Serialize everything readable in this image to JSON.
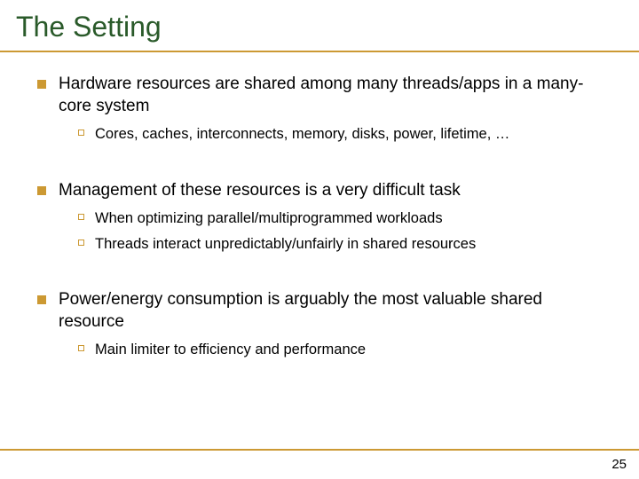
{
  "title": "The Setting",
  "colors": {
    "title_text": "#2a5a2a",
    "accent": "#cc9933",
    "body_text": "#000000",
    "background": "#ffffff"
  },
  "typography": {
    "title_fontsize": 32,
    "level1_fontsize": 19,
    "level2_fontsize": 16.5,
    "title_font": "Arial",
    "body_font": "Verdana"
  },
  "bullets": [
    {
      "text": "Hardware resources are shared among many threads/apps in a many-core system",
      "children": [
        {
          "text": "Cores, caches, interconnects, memory, disks, power, lifetime, …"
        }
      ]
    },
    {
      "text": "Management of these resources is a very difficult task",
      "children": [
        {
          "text": "When optimizing parallel/multiprogrammed workloads"
        },
        {
          "text": "Threads interact unpredictably/unfairly in shared resources"
        }
      ]
    },
    {
      "text": "Power/energy consumption is arguably the most valuable shared resource",
      "children": [
        {
          "text": "Main limiter to efficiency and performance"
        }
      ]
    }
  ],
  "page_number": "25"
}
